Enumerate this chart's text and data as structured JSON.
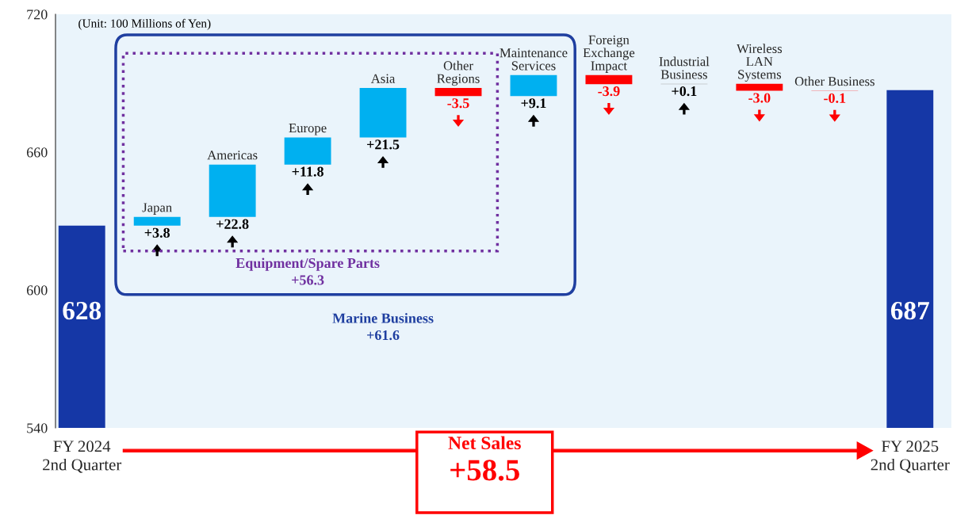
{
  "chart_data": {
    "type": "bar",
    "categories": [
      "FY 2024\n2nd Quarter",
      "Japan",
      "Americas",
      "Europe",
      "Asia",
      "Other\nRegions",
      "Maintenance\nServices",
      "Foreign\nExchange\nImpact",
      "Industrial\nBusiness",
      "Wireless\nLAN\nSystems",
      "Other Business",
      "FY 2025\n2nd Quarter"
    ],
    "values": [
      628,
      3.8,
      22.8,
      11.8,
      21.5,
      -3.5,
      9.1,
      -3.9,
      0.1,
      -3.0,
      -0.1,
      687
    ],
    "base": [
      null,
      628,
      631.8,
      654.6,
      666.4,
      687.9,
      684.4,
      693.5,
      689.6,
      689.7,
      686.7,
      null
    ],
    "colors": [
      "#1537a6",
      "#00b0f0",
      "#00b0f0",
      "#00b0f0",
      "#00b0f0",
      "#ff0000",
      "#00b0f0",
      "#ff0000",
      "#a6a6a6",
      "#ff0000",
      "#ff0000",
      "#1537a6"
    ],
    "value_labels": [
      "628",
      "+3.8",
      "+22.8",
      "+11.8",
      "+21.5",
      "-3.5",
      "+9.1",
      "-3.9",
      "+0.1",
      "-3.0",
      "-0.1",
      "687"
    ],
    "ylim": [
      540,
      720
    ],
    "yticks": [
      540,
      600,
      660,
      720
    ],
    "annotations": [
      "(Unit: 100 Millions of Yen)",
      "Equipment/Spare Parts\n+56.3",
      "Marine Business\n+61.6",
      "Net Sales",
      "+58.5"
    ]
  }
}
